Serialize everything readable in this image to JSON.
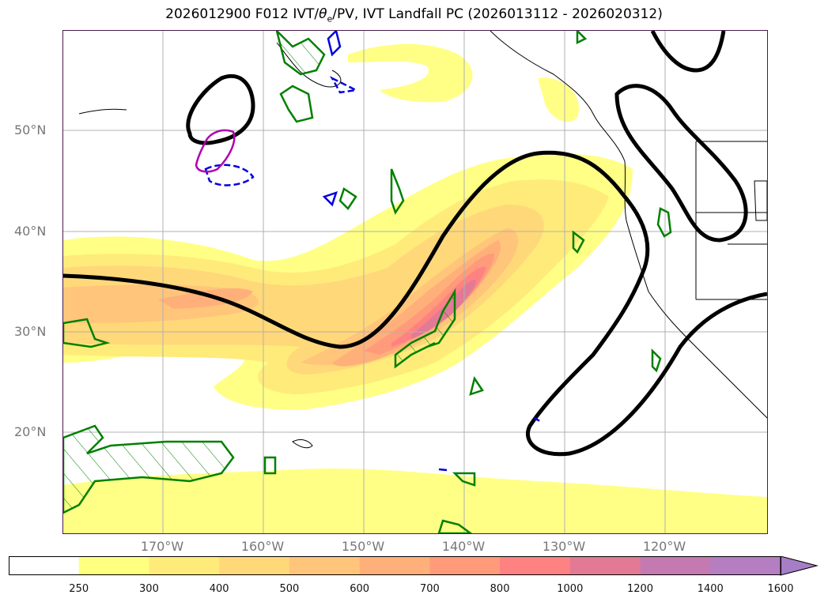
{
  "title": {
    "prefix": "2026012900 F012 IVT/",
    "theta": "θ",
    "theta_sub": "e",
    "suffix": "/PV, IVT Landfall PC (2026013112 - 2026020312)"
  },
  "lat_labels": [
    "50°N",
    "40°N",
    "30°N",
    "20°N"
  ],
  "lon_labels": [
    "170°W",
    "160°W",
    "150°W",
    "140°W",
    "130°W",
    "120°W"
  ],
  "colorbar": {
    "ticks": [
      "250",
      "300",
      "400",
      "500",
      "600",
      "700",
      "800",
      "1000",
      "1200",
      "1400",
      "1600"
    ],
    "colors": [
      "#ffffff",
      "#ffff80",
      "#ffeb7a",
      "#ffd87a",
      "#ffc57a",
      "#ffb07a",
      "#ff9a7a",
      "#ff8282",
      "#e27a96",
      "#c479b0",
      "#b47ec0",
      "#a67ec6"
    ],
    "extend": "max"
  },
  "colors": {
    "contour_black": "#000000",
    "pv_green": "#008000",
    "pv_blue": "#0000dd",
    "pv_magenta": "#b000b0",
    "coastline": "#000000",
    "grid": "#b0b0b0"
  }
}
